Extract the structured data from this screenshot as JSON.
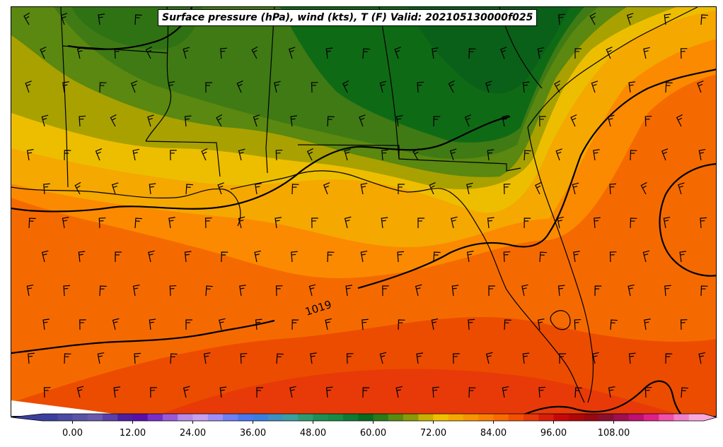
{
  "title": "Surface pressure (hPa), wind (kts), T (F) Valid: 202105130000f025",
  "map": {
    "contour_label": "1019"
  },
  "colorbar": {
    "min": -6,
    "max": 126,
    "step": 3,
    "tick_labels": [
      "0.00",
      "12.00",
      "24.00",
      "36.00",
      "48.00",
      "60.00",
      "72.00",
      "84.00",
      "96.00",
      "108.00"
    ],
    "tick_values": [
      0,
      12,
      24,
      36,
      48,
      60,
      72,
      84,
      96,
      108
    ],
    "colors": [
      "#3b3f9e",
      "#4b49a2",
      "#5a53a6",
      "#6a5aac",
      "#5a3fa8",
      "#4d1fa0",
      "#5a10a8",
      "#7a2ec8",
      "#9a5ad8",
      "#b88be6",
      "#c7a0f0",
      "#9f8ff5",
      "#6f7ff5",
      "#4a78f0",
      "#3a7fe0",
      "#3f8fc0",
      "#3c9ea0",
      "#2f9a70",
      "#1f8f55",
      "#178a45",
      "#0f7a35",
      "#0a6a20",
      "#2a7a18",
      "#5a8a10",
      "#8a9a08",
      "#c8b000",
      "#f0c000",
      "#f5a800",
      "#f89400",
      "#fb7f00",
      "#fa6a00",
      "#f35000",
      "#e83a08",
      "#d81e08",
      "#c80808",
      "#b00808",
      "#9a0810",
      "#8a1030",
      "#a01050",
      "#c01070",
      "#e0208a",
      "#f050a8",
      "#f080c8",
      "#f8a8dc"
    ]
  },
  "map_colors": {
    "very_warm": "#ec4c00",
    "warm": "#f56a00",
    "orange": "#fb8a00",
    "light_orange": "#f5a800",
    "yellow": "#edbe00",
    "olive": "#a9a100",
    "green_olive": "#5a8810",
    "green": "#3f7a14",
    "dark_green": "#0f6a15",
    "darkest_green": "#0a6018"
  }
}
